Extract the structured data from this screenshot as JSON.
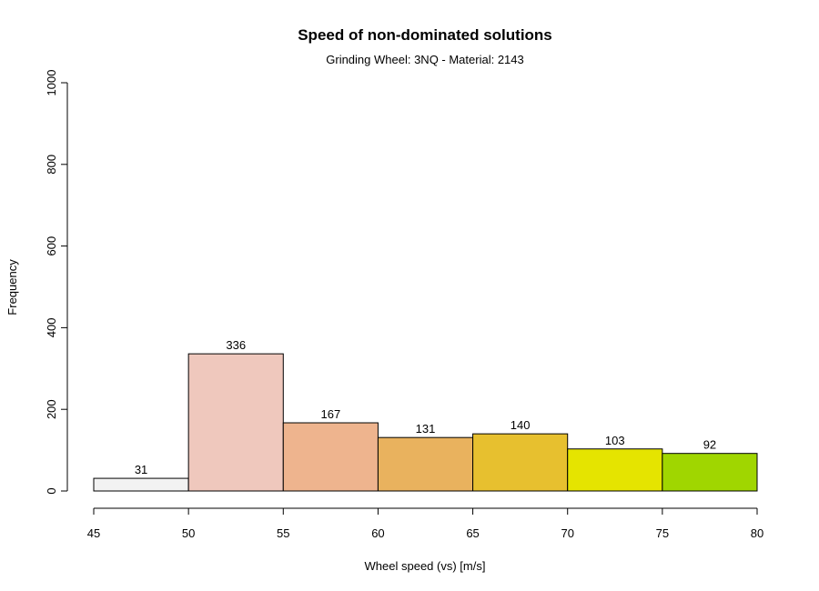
{
  "chart_data": {
    "type": "bar",
    "title": "Speed of non-dominated solutions",
    "subtitle": "Grinding Wheel: 3NQ - Material: 2143",
    "xlabel": "Wheel speed (vs) [m/s]",
    "ylabel": "Frequency",
    "bins": [
      {
        "from": 45,
        "to": 50,
        "value": 31,
        "label": "31",
        "color": "#f2f2f2"
      },
      {
        "from": 50,
        "to": 55,
        "value": 336,
        "label": "336",
        "color": "#efc8bd"
      },
      {
        "from": 55,
        "to": 60,
        "value": 167,
        "label": "167",
        "color": "#eeb48e"
      },
      {
        "from": 60,
        "to": 65,
        "value": 131,
        "label": "131",
        "color": "#e9b25e"
      },
      {
        "from": 65,
        "to": 70,
        "value": 140,
        "label": "140",
        "color": "#e7c02f"
      },
      {
        "from": 70,
        "to": 75,
        "value": 103,
        "label": "103",
        "color": "#e5e400"
      },
      {
        "from": 75,
        "to": 80,
        "value": 92,
        "label": "92",
        "color": "#a0d600"
      }
    ],
    "xlim": [
      45,
      80
    ],
    "ylim": [
      0,
      1000
    ],
    "x_ticks": [
      "45",
      "50",
      "55",
      "60",
      "65",
      "70",
      "75",
      "80"
    ],
    "y_ticks": [
      "0",
      "200",
      "400",
      "600",
      "800",
      "1000"
    ],
    "grid": false,
    "legend": "none"
  }
}
